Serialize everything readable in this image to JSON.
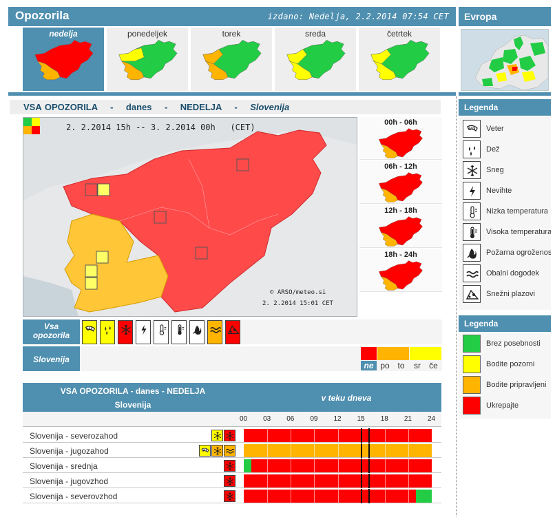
{
  "header": {
    "title": "Opozorila",
    "issued": "izdano: Nedelja, 2.2.2014 07:54 CET"
  },
  "europe": {
    "title": "Evropa"
  },
  "days": [
    {
      "label": "nedelja",
      "active": true
    },
    {
      "label": "ponedeljek",
      "active": false
    },
    {
      "label": "torek",
      "active": false
    },
    {
      "label": "sreda",
      "active": false
    },
    {
      "label": "četrtek",
      "active": false
    }
  ],
  "title_strip": {
    "part1": "VSA OPOZORILA",
    "sep": "-",
    "part2": "danes",
    "part3": "NEDELJA",
    "part4": "Slovenija"
  },
  "map": {
    "time_range": "2. 2.2014 15h -- 3. 2.2014 00h",
    "tz": "(CET)",
    "copyright": "© ARSO/meteo.si",
    "date": "2. 2.2014  15:01 CET"
  },
  "time_panels": [
    "00h - 06h",
    "06h - 12h",
    "12h - 18h",
    "18h - 24h"
  ],
  "filter_row": {
    "label_line1": "Vsa",
    "label_line2": "opozorila",
    "region_label": "Slovenija"
  },
  "filter_icons": [
    "wind-icon",
    "rain-icon",
    "snow-icon",
    "thunderstorm-icon",
    "low-temperature-icon",
    "high-temperature-icon",
    "fire-danger-icon",
    "coastal-event-icon",
    "avalanche-icon"
  ],
  "severity_days": [
    {
      "label": "ne",
      "color": "#ff0000",
      "active": true
    },
    {
      "label": "po",
      "color": "#ffb400",
      "active": false
    },
    {
      "label": "to",
      "color": "#ffb400",
      "active": false
    },
    {
      "label": "sr",
      "color": "#ffff00",
      "active": false
    },
    {
      "label": "če",
      "color": "#ffff00",
      "active": false
    }
  ],
  "table": {
    "header_line1": "VSA OPOZORILA - danes - NEDELJA",
    "header_line2": "Slovenija",
    "header_right": "v teku dneva",
    "hours": [
      "00",
      "03",
      "06",
      "09",
      "12",
      "15",
      "18",
      "21",
      "24"
    ],
    "rows": [
      {
        "name": "Slovenija - severozahod",
        "icons": [
          "snow-icon",
          "snow-icon"
        ],
        "segments": [
          {
            "from": 0,
            "to": 24,
            "level": "red"
          }
        ]
      },
      {
        "name": "Slovenija - jugozahod",
        "icons": [
          "wind-icon",
          "snow-icon",
          "coastal-event-icon"
        ],
        "segments": [
          {
            "from": 0,
            "to": 24,
            "level": "orange"
          }
        ]
      },
      {
        "name": "Slovenija - srednja",
        "icons": [
          "snow-icon"
        ],
        "segments": [
          {
            "from": 0,
            "to": 1,
            "level": "green"
          },
          {
            "from": 1,
            "to": 24,
            "level": "red"
          }
        ]
      },
      {
        "name": "Slovenija - jugovzhod",
        "icons": [
          "snow-icon"
        ],
        "segments": [
          {
            "from": 0,
            "to": 24,
            "level": "red"
          }
        ]
      },
      {
        "name": "Slovenija - severovzhod",
        "icons": [
          "snow-icon"
        ],
        "segments": [
          {
            "from": 0,
            "to": 22,
            "level": "red"
          },
          {
            "from": 22,
            "to": 24,
            "level": "green"
          }
        ]
      }
    ]
  },
  "legend1": {
    "title": "Legenda",
    "items": [
      {
        "icon": "wind-icon",
        "label": "Veter"
      },
      {
        "icon": "rain-icon",
        "label": "Dež"
      },
      {
        "icon": "snow-icon",
        "label": "Sneg"
      },
      {
        "icon": "thunderstorm-icon",
        "label": "Nevihte"
      },
      {
        "icon": "low-temperature-icon",
        "label": "Nizka temperatura"
      },
      {
        "icon": "high-temperature-icon",
        "label": "Visoka temperatura"
      },
      {
        "icon": "fire-danger-icon",
        "label": "Požarna ogroženost"
      },
      {
        "icon": "coastal-event-icon",
        "label": "Obalni dogodek"
      },
      {
        "icon": "avalanche-icon",
        "label": "Snežni plazovi"
      }
    ]
  },
  "legend2": {
    "title": "Legenda",
    "items": [
      {
        "color": "#22cc44",
        "label": "Brez posebnosti"
      },
      {
        "color": "#ffff00",
        "label": "Bodite pozorni"
      },
      {
        "color": "#ffb400",
        "label": "Bodite pripravljeni"
      },
      {
        "color": "#ff0000",
        "label": "Ukrepajte"
      }
    ]
  },
  "colors": {
    "accent": "#4f8fb0",
    "red": "#ff0000",
    "orange": "#ffb400",
    "yellow": "#ffff00",
    "green": "#22cc44"
  }
}
